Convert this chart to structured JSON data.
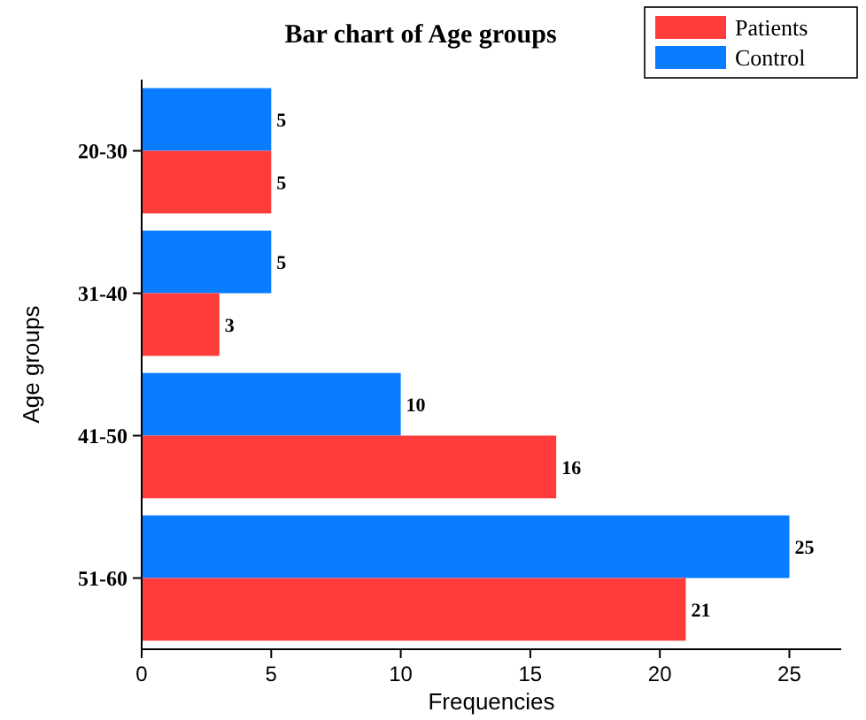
{
  "chart_data": {
    "type": "bar",
    "orientation": "horizontal",
    "title": "Bar chart of Age groups",
    "xlabel": "Frequencies",
    "ylabel": "Age groups",
    "categories": [
      "20-30",
      "31-40",
      "41-50",
      "51-60"
    ],
    "series": [
      {
        "name": "Control",
        "color": "#0a7cff",
        "values": [
          5,
          5,
          10,
          25
        ]
      },
      {
        "name": "Patients",
        "color": "#ff3b3b",
        "values": [
          5,
          3,
          16,
          21
        ]
      }
    ],
    "xlim": [
      0,
      27
    ],
    "xticks": [
      0,
      5,
      10,
      15,
      20,
      25
    ],
    "data_labels": true,
    "legend": "top right"
  }
}
